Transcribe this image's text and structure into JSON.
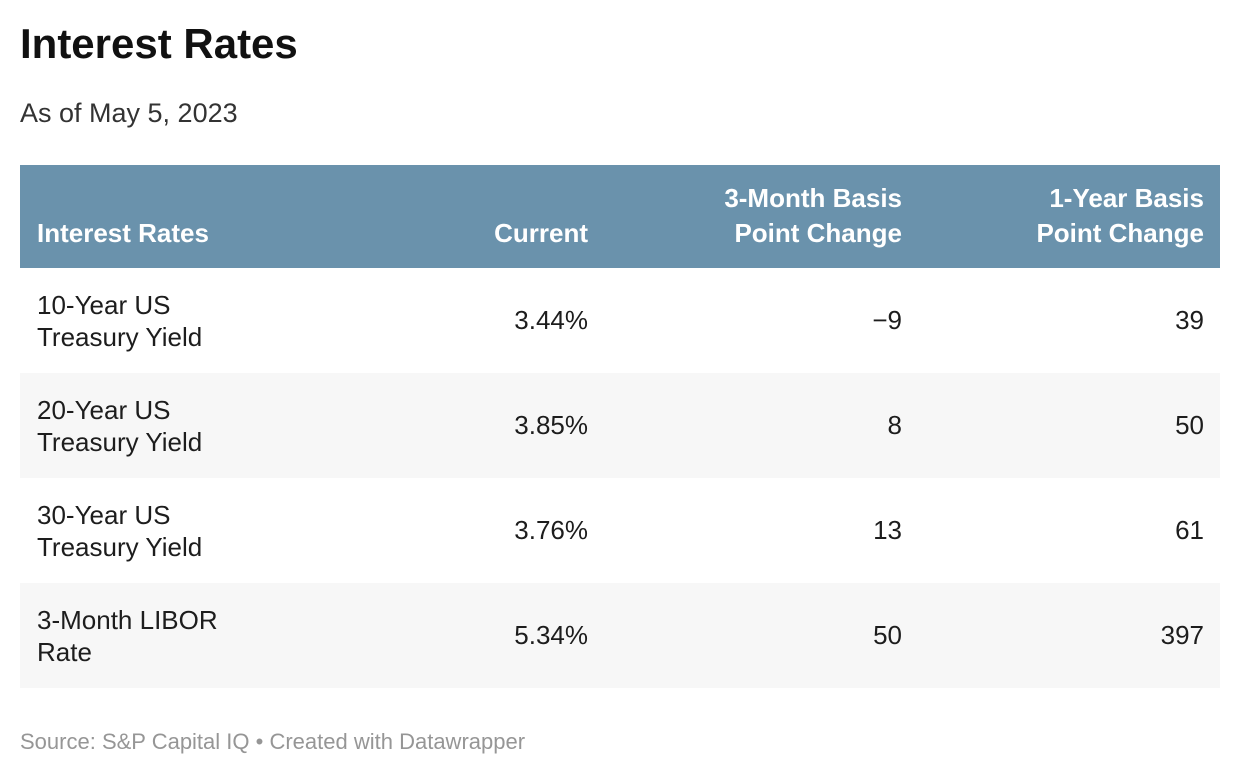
{
  "chart_data": {
    "type": "table",
    "title": "Interest Rates",
    "subtitle": "As of May 5, 2023",
    "columns": [
      "Interest Rates",
      "Current",
      "3-Month Basis\nPoint Change",
      "1-Year Basis\nPoint Change"
    ],
    "rows": [
      [
        "10-Year US\nTreasury Yield",
        "3.44%",
        "−9",
        "39"
      ],
      [
        "20-Year US\nTreasury Yield",
        "3.85%",
        "8",
        "50"
      ],
      [
        "30-Year US\nTreasury Yield",
        "3.76%",
        "13",
        "61"
      ],
      [
        "3-Month LIBOR\nRate",
        "5.34%",
        "50",
        "397"
      ]
    ],
    "layout_hints": {
      "header_align": "numeric columns right-aligned, first column left-aligned",
      "alternating_rows": true
    }
  },
  "footer": {
    "source_label": "Source:",
    "source_text": "S&P Capital IQ",
    "separator": "•",
    "credit": "Created with Datawrapper"
  },
  "colors": {
    "header_bg": "#6a92ac",
    "header_text": "#ffffff",
    "alt_row_bg": "#f7f7f7",
    "body_text": "#1d1d1d",
    "title_text": "#111111",
    "subtitle_text": "#333333",
    "footer_text": "#969696",
    "page_bg": "#ffffff"
  }
}
